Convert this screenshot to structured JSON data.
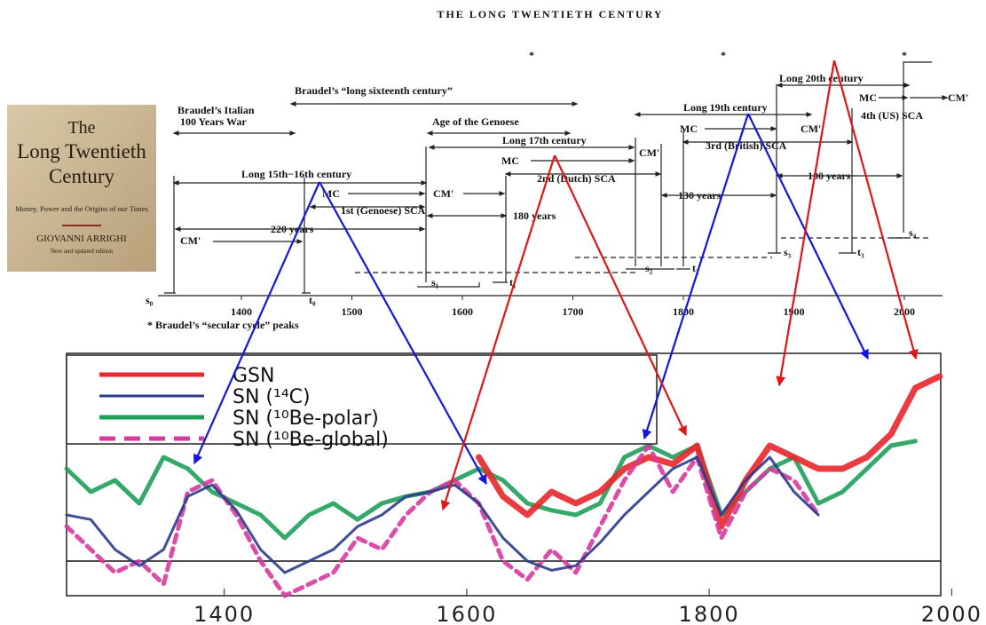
{
  "book": {
    "title_lines": [
      "The",
      "Long Twentieth",
      "Century"
    ],
    "subtitle": "Money, Power and the Origins of our Times",
    "author": "GIOVANNI ARRIGHI",
    "edition": "New and updated edition"
  },
  "diagram": {
    "title": "THE LONG TWENTIETH CENTURY",
    "peak_marks": [
      "*",
      "*",
      "*"
    ],
    "labels": [
      "Braudel’s “long sixteenth century”",
      "Braudel’s Italian",
      "100 Years War",
      "Age of the Genoese",
      "Long 15th−16th century",
      "MC",
      "CM′",
      "1st (Genoese) SCA",
      "180 years",
      "CM′",
      "220 years",
      "Long 17th century",
      "MC",
      "CM′",
      "2nd (Dutch) SCA",
      "130 years",
      "Long 19th century",
      "MC",
      "CM′",
      "3rd (British) SCA",
      "100 years",
      "Long 20th century",
      "MC",
      "CM′",
      "4th (US) SCA"
    ],
    "points": [
      "s₀",
      "t₀",
      "s₁",
      "t₁",
      "s₂",
      "t₂",
      "s₃",
      "t₃",
      "s₄"
    ],
    "axis_labels": [
      "1400",
      "1500",
      "1600",
      "1700",
      "1800",
      "1900",
      "2000"
    ],
    "footnote": "* Braudel’s “secular cycle” peaks"
  },
  "chart_data": {
    "type": "line",
    "x": [
      1270,
      1290,
      1310,
      1330,
      1350,
      1370,
      1390,
      1410,
      1430,
      1450,
      1470,
      1490,
      1510,
      1530,
      1550,
      1570,
      1590,
      1610,
      1630,
      1650,
      1670,
      1690,
      1710,
      1730,
      1750,
      1770,
      1790,
      1810,
      1830,
      1850,
      1870,
      1890,
      1910,
      1930,
      1950,
      1970,
      1990
    ],
    "series": [
      {
        "name": "GSN",
        "color": "#e8262b",
        "values": [
          null,
          null,
          null,
          null,
          null,
          null,
          null,
          null,
          null,
          null,
          null,
          null,
          null,
          null,
          null,
          null,
          null,
          45,
          28,
          20,
          30,
          25,
          30,
          40,
          45,
          42,
          50,
          15,
          35,
          50,
          45,
          40,
          40,
          45,
          55,
          75,
          80
        ]
      },
      {
        "name": "SN (¹⁴C)",
        "color": "#2b3a8c",
        "values": [
          20,
          18,
          5,
          -2,
          5,
          28,
          33,
          22,
          5,
          -5,
          0,
          5,
          15,
          20,
          28,
          30,
          33,
          25,
          10,
          0,
          -4,
          -2,
          8,
          20,
          30,
          40,
          45,
          20,
          35,
          45,
          30,
          20,
          null,
          null,
          null,
          null,
          null
        ]
      },
      {
        "name": "SN (¹⁰Be-polar)",
        "color": "#1fa05a",
        "values": [
          40,
          30,
          35,
          25,
          45,
          40,
          30,
          25,
          20,
          10,
          20,
          25,
          18,
          25,
          28,
          30,
          35,
          40,
          35,
          25,
          22,
          20,
          25,
          45,
          50,
          45,
          50,
          20,
          30,
          40,
          45,
          25,
          30,
          40,
          50,
          52,
          null
        ]
      },
      {
        "name": "SN (¹⁰Be-global)",
        "color": "#d63aa0",
        "values": [
          15,
          5,
          -5,
          0,
          -10,
          30,
          35,
          20,
          0,
          -15,
          -10,
          -5,
          10,
          5,
          20,
          30,
          35,
          25,
          0,
          -8,
          5,
          -5,
          15,
          35,
          50,
          30,
          45,
          10,
          30,
          40,
          35,
          20,
          null,
          null,
          null,
          null,
          null
        ]
      }
    ],
    "xlim": [
      1270,
      2010
    ],
    "ylim": [
      -15,
      90
    ],
    "xticks": [
      1400,
      1600,
      1800,
      2000
    ]
  }
}
